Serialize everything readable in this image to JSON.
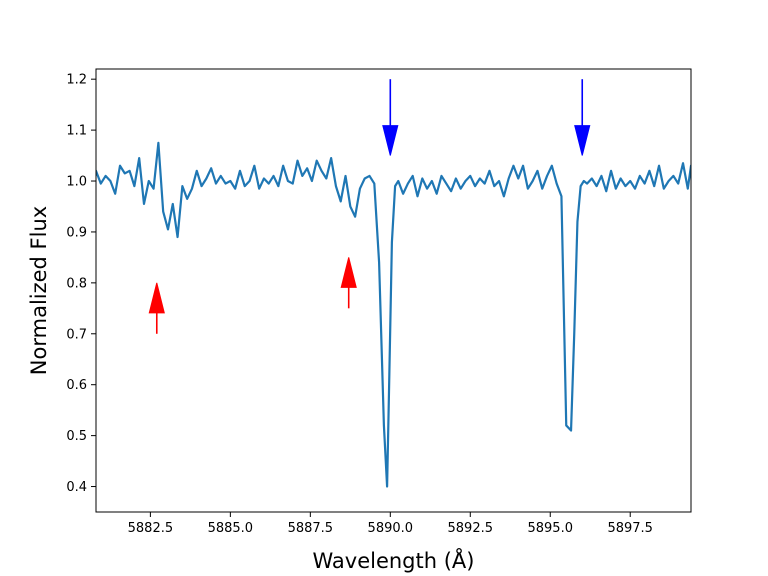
{
  "chart_data": {
    "type": "line",
    "title": "",
    "xlabel": "Wavelength (Å)",
    "ylabel": "Normalized Flux",
    "xlim": [
      5880.8,
      5899.4
    ],
    "ylim": [
      0.35,
      1.22
    ],
    "xticks": [
      5882.5,
      5885.0,
      5887.5,
      5890.0,
      5892.5,
      5895.0,
      5897.5
    ],
    "xtick_labels": [
      "5882.5",
      "5885.0",
      "5887.5",
      "5890.0",
      "5892.5",
      "5895.0",
      "5897.5"
    ],
    "yticks": [
      0.4,
      0.5,
      0.6,
      0.7,
      0.8,
      0.9,
      1.0,
      1.1,
      1.2
    ],
    "ytick_labels": [
      "0.4",
      "0.5",
      "0.6",
      "0.7",
      "0.8",
      "0.9",
      "1.0",
      "1.1",
      "1.2"
    ],
    "grid": false,
    "series": [
      {
        "color": "#1f77b4",
        "x": [
          5880.8,
          5880.95,
          5881.1,
          5881.25,
          5881.4,
          5881.55,
          5881.7,
          5881.85,
          5882.0,
          5882.15,
          5882.3,
          5882.45,
          5882.6,
          5882.75,
          5882.9,
          5883.05,
          5883.2,
          5883.35,
          5883.5,
          5883.65,
          5883.8,
          5883.95,
          5884.1,
          5884.25,
          5884.4,
          5884.55,
          5884.7,
          5884.85,
          5885.0,
          5885.15,
          5885.3,
          5885.45,
          5885.6,
          5885.75,
          5885.9,
          5886.05,
          5886.2,
          5886.35,
          5886.5,
          5886.65,
          5886.8,
          5886.95,
          5887.1,
          5887.25,
          5887.4,
          5887.55,
          5887.7,
          5887.85,
          5888.0,
          5888.15,
          5888.3,
          5888.45,
          5888.6,
          5888.75,
          5888.9,
          5889.05,
          5889.2,
          5889.35,
          5889.5,
          5889.65,
          5889.8,
          5889.9,
          5889.97,
          5890.05,
          5890.15,
          5890.25,
          5890.4,
          5890.55,
          5890.7,
          5890.85,
          5891.0,
          5891.15,
          5891.3,
          5891.45,
          5891.6,
          5891.75,
          5891.9,
          5892.05,
          5892.2,
          5892.35,
          5892.5,
          5892.65,
          5892.8,
          5892.95,
          5893.1,
          5893.25,
          5893.4,
          5893.55,
          5893.7,
          5893.85,
          5894.0,
          5894.15,
          5894.3,
          5894.45,
          5894.6,
          5894.75,
          5894.9,
          5895.05,
          5895.2,
          5895.35,
          5895.5,
          5895.65,
          5895.75,
          5895.85,
          5895.95,
          5896.05,
          5896.15,
          5896.3,
          5896.45,
          5896.6,
          5896.75,
          5896.9,
          5897.05,
          5897.2,
          5897.35,
          5897.5,
          5897.65,
          5897.8,
          5897.95,
          5898.1,
          5898.25,
          5898.4,
          5898.55,
          5898.7,
          5898.85,
          5899.0,
          5899.15,
          5899.3,
          5899.4
        ],
        "y": [
          1.02,
          0.995,
          1.01,
          1.0,
          0.975,
          1.03,
          1.015,
          1.02,
          0.99,
          1.045,
          0.955,
          1.0,
          0.985,
          1.075,
          0.94,
          0.905,
          0.955,
          0.89,
          0.99,
          0.965,
          0.985,
          1.02,
          0.99,
          1.005,
          1.025,
          0.995,
          1.01,
          0.995,
          1.0,
          0.985,
          1.02,
          0.99,
          1.0,
          1.03,
          0.985,
          1.005,
          0.995,
          1.01,
          0.99,
          1.03,
          1.0,
          0.995,
          1.04,
          1.01,
          1.025,
          1.0,
          1.04,
          1.02,
          1.005,
          1.045,
          0.99,
          0.96,
          1.01,
          0.95,
          0.93,
          0.985,
          1.005,
          1.01,
          0.995,
          0.84,
          0.52,
          0.4,
          0.62,
          0.88,
          0.99,
          1.0,
          0.975,
          0.995,
          1.01,
          0.97,
          1.005,
          0.985,
          1.0,
          0.975,
          1.01,
          0.995,
          0.98,
          1.005,
          0.985,
          1.0,
          1.01,
          0.99,
          1.005,
          0.995,
          1.02,
          0.99,
          1.0,
          0.97,
          1.005,
          1.03,
          1.005,
          1.03,
          0.985,
          1.0,
          1.02,
          0.985,
          1.01,
          1.03,
          0.995,
          0.97,
          0.52,
          0.51,
          0.7,
          0.92,
          0.99,
          1.0,
          0.995,
          1.005,
          0.99,
          1.01,
          0.98,
          1.02,
          0.985,
          1.005,
          0.99,
          1.0,
          0.985,
          1.01,
          0.995,
          1.02,
          0.99,
          1.03,
          0.985,
          1.0,
          1.01,
          0.995,
          1.035,
          0.985,
          1.03
        ]
      }
    ],
    "markers": [
      {
        "kind": "arrow-up",
        "color": "#ff0000",
        "x": 5882.7,
        "y_tail": 0.7,
        "y_head": 0.8
      },
      {
        "kind": "arrow-up",
        "color": "#ff0000",
        "x": 5888.7,
        "y_tail": 0.75,
        "y_head": 0.85
      },
      {
        "kind": "arrow-down",
        "color": "#0000ff",
        "x": 5890.0,
        "y_tail": 1.2,
        "y_head": 1.05
      },
      {
        "kind": "arrow-down",
        "color": "#0000ff",
        "x": 5896.0,
        "y_tail": 1.2,
        "y_head": 1.05
      }
    ]
  }
}
